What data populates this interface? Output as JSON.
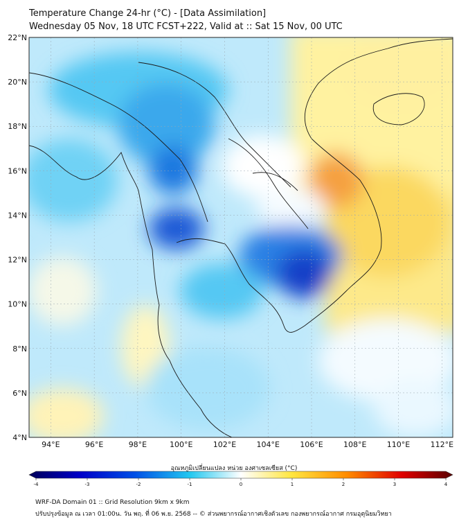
{
  "title": {
    "line1": "Temperature Change 24-hr (°C) - [Data Assimilation]",
    "line2": "Wednesday 05 Nov, 18 UTC FCST+222, Valid at :: Sat 15 Nov, 00 UTC"
  },
  "map": {
    "lat_labels": [
      "22°N",
      "20°N",
      "18°N",
      "16°N",
      "14°N",
      "12°N",
      "10°N",
      "8°N",
      "6°N",
      "4°N"
    ],
    "lon_labels": [
      "94°E",
      "96°E",
      "98°E",
      "100°E",
      "102°E",
      "104°E",
      "106°E",
      "108°E",
      "110°E",
      "112°E"
    ],
    "lat_range": [
      4,
      22
    ],
    "lon_range": [
      93,
      112.5
    ],
    "grid": true
  },
  "colorbar": {
    "title": "อุณหภูมิเปลี่ยนแปลง หน่วย องศาเซลเซียส (°C)",
    "ticks": [
      "-4",
      "-3",
      "-2",
      "-1",
      "0",
      "1",
      "2",
      "3",
      "4"
    ],
    "range": [
      -4,
      4
    ],
    "colors": {
      "min": "#00005a",
      "blue": "#0050e6",
      "cyan": "#22c8f0",
      "neutral": "#ffffff",
      "yellow": "#ffe640",
      "orange": "#ff8c00",
      "red": "#e00000",
      "max": "#5a0000"
    }
  },
  "footer": {
    "line1": "WRF-DA Domain 01 :: Grid Resolution 9km x 9km",
    "line2": "ปรับปรุงข้อมูล ณ เวลา 01:00น. วัน พฤ. ที่ 06 พ.ย. 2568 -- © ส่วนพยากรณ์อากาศเชิงตัวเลข กองพยากรณ์อากาศ กรมอุตุนิยมวิทยา"
  }
}
